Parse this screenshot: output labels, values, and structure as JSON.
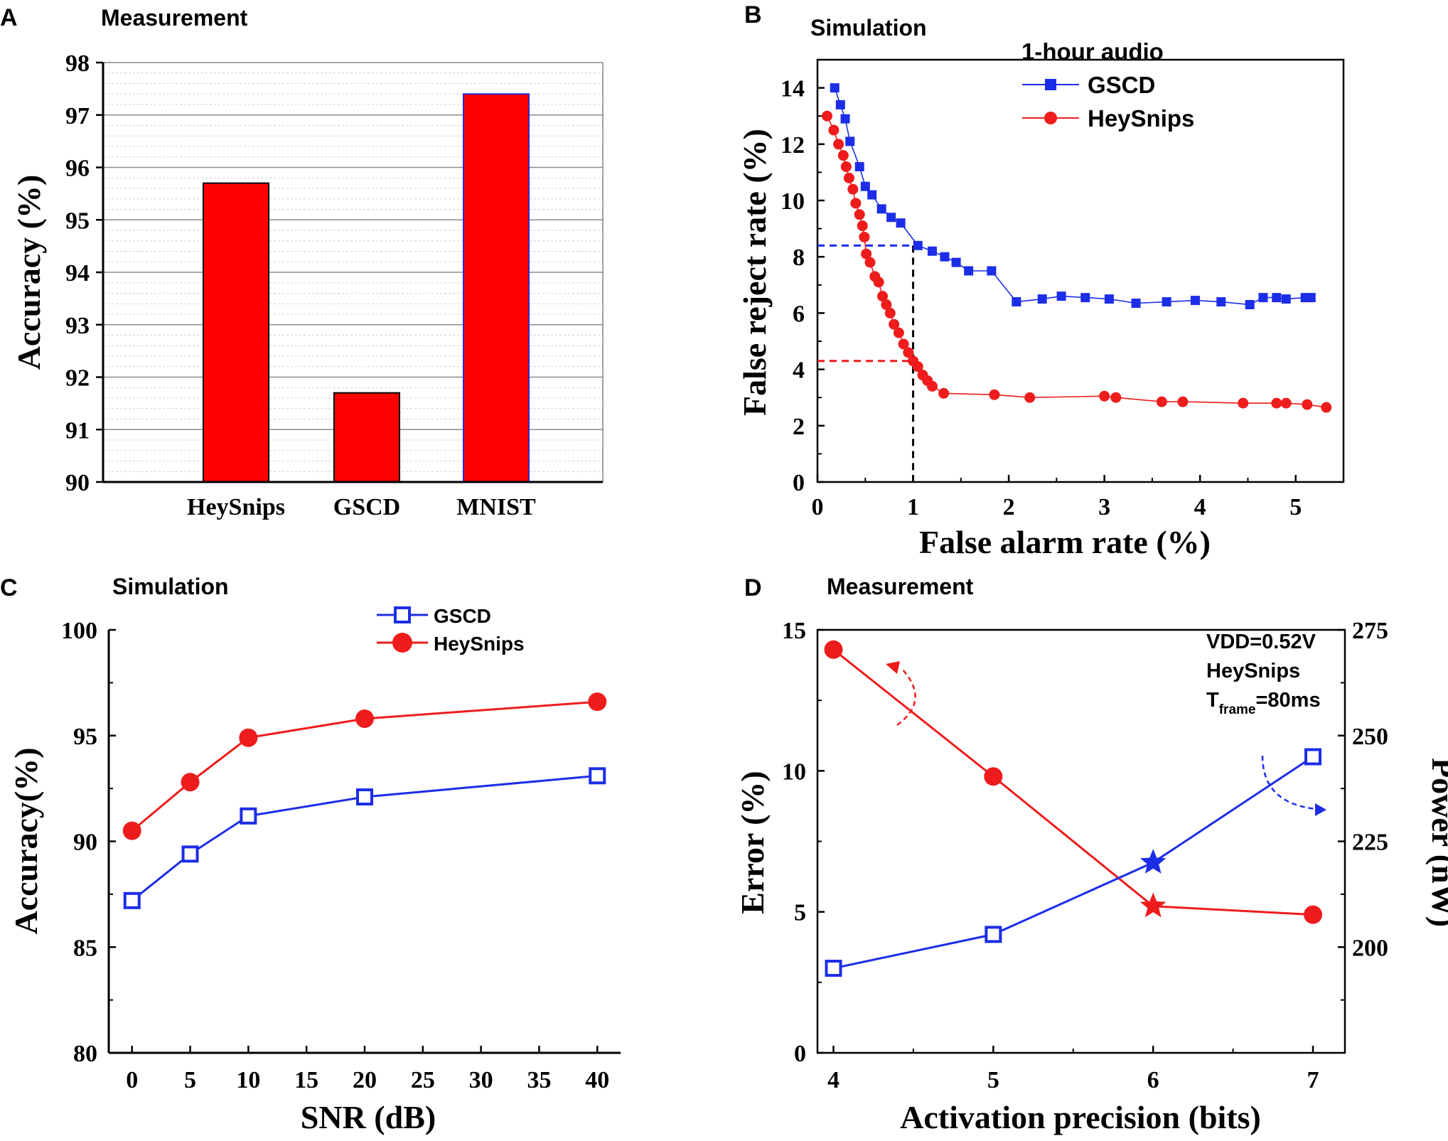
{
  "colors": {
    "red": "#ee1c1c",
    "blue": "#1c2de8",
    "bar_fill": "#ff0000",
    "grid": "#999999",
    "axis": "#000000"
  },
  "chart_data": [
    {
      "panel": "A",
      "subtitle": "Measurement",
      "type": "bar",
      "categories": [
        "HeySnips",
        "GSCD",
        "MNIST"
      ],
      "values": [
        95.7,
        91.7,
        97.4
      ],
      "ylabel": "Accuracy (%)",
      "xlabel": "",
      "ylim": [
        90,
        98
      ],
      "yticks": [
        "90",
        "91",
        "92",
        "93",
        "94",
        "95",
        "96",
        "97",
        "98"
      ],
      "grid": true
    },
    {
      "panel": "B",
      "subtitle": "Simulation",
      "type": "line",
      "xlabel": "False alarm rate (%)",
      "ylabel": "False reject rate (%)",
      "xlim": [
        0,
        5.5
      ],
      "ylim": [
        0,
        15
      ],
      "xticks": [
        "0",
        "1",
        "2",
        "3",
        "4",
        "5"
      ],
      "yticks": [
        "0",
        "2",
        "4",
        "6",
        "8",
        "10",
        "12",
        "14"
      ],
      "legend_title": "1-hour audio",
      "series": [
        {
          "name": "GSCD",
          "color": "blue",
          "marker": "square",
          "x": [
            0.18,
            0.24,
            0.29,
            0.34,
            0.44,
            0.5,
            0.57,
            0.67,
            0.77,
            0.87,
            1.05,
            1.2,
            1.33,
            1.45,
            1.58,
            1.82,
            2.08,
            2.35,
            2.55,
            2.8,
            3.05,
            3.33,
            3.65,
            3.95,
            4.22,
            4.52,
            4.66,
            4.8,
            4.9,
            5.1,
            5.16
          ],
          "y": [
            14.0,
            13.4,
            12.9,
            12.1,
            11.2,
            10.5,
            10.2,
            9.7,
            9.4,
            9.2,
            8.4,
            8.2,
            8.0,
            7.8,
            7.5,
            7.5,
            6.4,
            6.5,
            6.6,
            6.55,
            6.5,
            6.35,
            6.4,
            6.45,
            6.4,
            6.3,
            6.55,
            6.55,
            6.5,
            6.55,
            6.55
          ]
        },
        {
          "name": "HeySnips",
          "color": "red",
          "marker": "circle",
          "x": [
            0.1,
            0.17,
            0.22,
            0.27,
            0.3,
            0.33,
            0.37,
            0.4,
            0.44,
            0.47,
            0.49,
            0.51,
            0.55,
            0.6,
            0.64,
            0.68,
            0.72,
            0.76,
            0.8,
            0.85,
            0.9,
            0.95,
            1.0,
            1.05,
            1.1,
            1.15,
            1.2,
            1.32,
            1.85,
            2.22,
            3.0,
            3.12,
            3.6,
            3.82,
            4.45,
            4.8,
            4.9,
            5.12,
            5.32
          ],
          "y": [
            13.0,
            12.5,
            12.0,
            11.6,
            11.2,
            10.8,
            10.4,
            9.9,
            9.5,
            9.1,
            8.7,
            8.1,
            7.8,
            7.3,
            7.1,
            6.6,
            6.3,
            6.0,
            5.6,
            5.3,
            4.9,
            4.6,
            4.3,
            4.1,
            3.8,
            3.6,
            3.4,
            3.15,
            3.1,
            3.0,
            3.05,
            3.0,
            2.85,
            2.85,
            2.8,
            2.8,
            2.8,
            2.75,
            2.65
          ]
        }
      ],
      "guides": [
        {
          "color": "blue",
          "y": 8.4,
          "x": 1.0
        },
        {
          "color": "red",
          "y": 4.3,
          "x": 1.0
        }
      ]
    },
    {
      "panel": "C",
      "subtitle": "Simulation",
      "type": "line",
      "xlabel": "SNR (dB)",
      "ylabel": "Accuracy(%)",
      "xlim": [
        -2,
        42
      ],
      "ylim": [
        80,
        100
      ],
      "xticks": [
        "0",
        "5",
        "10",
        "15",
        "20",
        "25",
        "30",
        "35",
        "40"
      ],
      "yticks": [
        "80",
        "85",
        "90",
        "95",
        "100"
      ],
      "series": [
        {
          "name": "GSCD",
          "color": "blue",
          "marker": "open-square",
          "x": [
            0,
            5,
            10,
            20,
            40
          ],
          "y": [
            87.2,
            89.4,
            91.2,
            92.1,
            93.1
          ]
        },
        {
          "name": "HeySnips",
          "color": "red",
          "marker": "circle",
          "x": [
            0,
            5,
            10,
            20,
            40
          ],
          "y": [
            90.5,
            92.8,
            94.9,
            95.8,
            96.6
          ]
        }
      ]
    },
    {
      "panel": "D",
      "subtitle": "Measurement",
      "type": "line",
      "xlabel": "Activation precision (bits)",
      "ylabel": "Error (%)",
      "y2label": "Power (nW)",
      "xlim": [
        3.9,
        7.2
      ],
      "ylim": [
        0,
        15
      ],
      "y2lim": [
        175,
        275
      ],
      "xticks": [
        "4",
        "5",
        "6",
        "7"
      ],
      "yticks": [
        "0",
        "5",
        "10",
        "15"
      ],
      "y2ticks": [
        "200",
        "225",
        "250",
        "275"
      ],
      "annotation": {
        "line1": "VDD=0.52V",
        "line2": "HeySnips",
        "line3_base": "T",
        "line3_sub": "frame",
        "line3_rest": "=80ms"
      },
      "series": [
        {
          "name": "Error",
          "axis": "left",
          "color": "red",
          "x": [
            4,
            5,
            6,
            7
          ],
          "y": [
            14.3,
            9.8,
            5.2,
            4.9
          ],
          "markers": [
            "circle",
            "circle",
            "star",
            "circle"
          ]
        },
        {
          "name": "Power",
          "axis": "right",
          "color": "blue",
          "x": [
            4,
            5,
            6,
            7
          ],
          "y": [
            195,
            203,
            220,
            245
          ],
          "markers": [
            "open-square",
            "open-square",
            "star",
            "open-square"
          ]
        }
      ]
    }
  ]
}
